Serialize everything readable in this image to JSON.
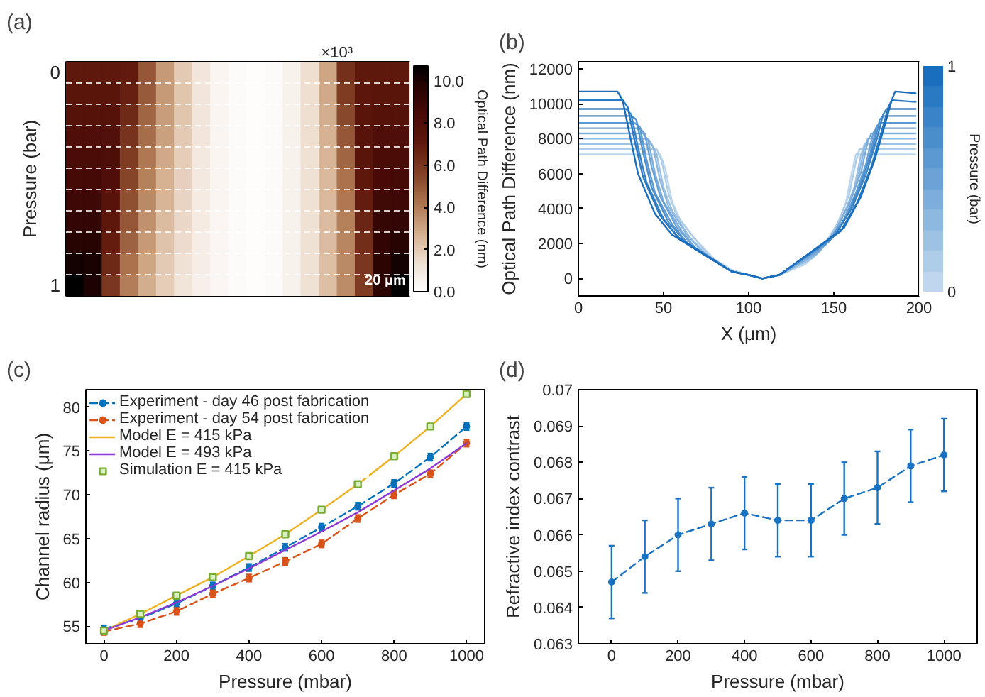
{
  "chart_data": [
    {
      "type": "heatmap",
      "title": "(a)",
      "ylabel": "Pressure (bar)",
      "clabel": "Optical Path Difference (nm)",
      "grid": "y",
      "annotations": [
        "×10³",
        "20 μm"
      ],
      "categories": [
        null,
        null,
        null,
        null,
        null,
        null,
        null,
        null,
        null,
        null,
        null,
        null,
        null,
        null,
        null,
        null,
        null,
        null,
        null
      ],
      "y_categories": [
        "0",
        null,
        null,
        null,
        null,
        null,
        null,
        null,
        null,
        null,
        "1"
      ],
      "clim": [
        0,
        10.7
      ],
      "cticks": [
        {
          "value": 0,
          "label": "0.0"
        },
        {
          "value": 2,
          "label": "2.0"
        },
        {
          "value": 4,
          "label": "4.0"
        },
        {
          "value": 6,
          "label": "6.0"
        },
        {
          "value": 8,
          "label": "8.0"
        },
        {
          "value": 10,
          "label": "10.0"
        }
      ],
      "cells": [
        [
          7.1,
          7.1,
          7.1,
          7.0,
          5.0,
          3.3,
          2.0,
          1.1,
          0.5,
          0.2,
          0.1,
          0.2,
          0.6,
          1.4,
          3.0,
          6.2,
          7.1,
          7.1,
          7.1
        ],
        [
          7.4,
          7.4,
          7.4,
          6.8,
          4.9,
          3.3,
          2.1,
          1.1,
          0.5,
          0.2,
          0.1,
          0.2,
          0.6,
          1.4,
          2.9,
          5.8,
          7.3,
          7.4,
          7.4
        ],
        [
          7.7,
          7.7,
          7.7,
          6.4,
          4.6,
          3.2,
          2.1,
          1.1,
          0.5,
          0.2,
          0.1,
          0.2,
          0.6,
          1.4,
          2.8,
          5.4,
          7.4,
          7.7,
          7.7
        ],
        [
          8.0,
          8.0,
          7.9,
          6.1,
          4.4,
          3.1,
          2.0,
          1.1,
          0.5,
          0.2,
          0.1,
          0.2,
          0.6,
          1.4,
          2.7,
          5.0,
          7.5,
          8.0,
          8.0
        ],
        [
          8.3,
          8.3,
          8.1,
          5.8,
          4.1,
          2.9,
          1.9,
          1.0,
          0.5,
          0.2,
          0.1,
          0.2,
          0.6,
          1.3,
          2.6,
          4.6,
          7.4,
          8.3,
          8.3
        ],
        [
          8.6,
          8.6,
          8.0,
          5.5,
          3.9,
          2.7,
          1.8,
          1.0,
          0.5,
          0.2,
          0.1,
          0.2,
          0.6,
          1.3,
          2.5,
          4.3,
          7.2,
          8.5,
          8.6
        ],
        [
          8.9,
          8.9,
          7.6,
          5.2,
          3.7,
          2.6,
          1.7,
          0.9,
          0.5,
          0.2,
          0.1,
          0.2,
          0.6,
          1.3,
          2.5,
          4.1,
          6.9,
          8.8,
          8.9
        ],
        [
          9.3,
          9.3,
          7.2,
          5.0,
          3.5,
          2.4,
          1.6,
          0.9,
          0.4,
          0.2,
          0.1,
          0.2,
          0.6,
          1.3,
          2.4,
          3.9,
          6.6,
          9.2,
          9.3
        ],
        [
          9.7,
          9.7,
          6.9,
          4.7,
          3.3,
          2.2,
          1.5,
          0.8,
          0.4,
          0.2,
          0.1,
          0.2,
          0.6,
          1.3,
          2.4,
          3.8,
          6.3,
          9.4,
          9.7
        ],
        [
          10.2,
          10.1,
          6.5,
          4.3,
          3.0,
          2.0,
          1.3,
          0.8,
          0.4,
          0.2,
          0.1,
          0.2,
          0.6,
          1.3,
          2.3,
          3.7,
          6.0,
          9.5,
          10.2
        ],
        [
          10.7,
          10.0,
          6.0,
          4.0,
          2.8,
          1.9,
          1.2,
          0.7,
          0.4,
          0.2,
          0.1,
          0.2,
          0.6,
          1.3,
          2.3,
          3.6,
          5.8,
          9.5,
          10.7
        ]
      ]
    },
    {
      "type": "line",
      "title": "(b)",
      "xlabel": "X (μm)",
      "ylabel": "Optical Path Difference (nm)",
      "xlim": [
        0,
        200
      ],
      "ylim": [
        -1000,
        12400
      ],
      "xticks": [
        0,
        50,
        100,
        150,
        200
      ],
      "yticks": [
        0,
        2000,
        4000,
        6000,
        8000,
        10000,
        12000
      ],
      "clabel": "Pressure (bar)",
      "clim": [
        0,
        1
      ],
      "cticks": [
        0,
        1
      ],
      "series": [
        {
          "color": "#bed7ee",
          "x": [
            0,
            48,
            51,
            55,
            60,
            70,
            80,
            90,
            100,
            108,
            118,
            133,
            143,
            151,
            157,
            161,
            163,
            198
          ],
          "values": [
            7100,
            7100,
            6300,
            4400,
            3300,
            2100,
            1100,
            500,
            200,
            0,
            200,
            800,
            1700,
            2900,
            4300,
            6300,
            7100,
            7100
          ]
        },
        {
          "color": "#aecde9",
          "x": [
            0,
            46,
            49,
            53,
            58,
            68,
            78,
            90,
            100,
            108,
            118,
            135,
            145,
            153,
            159,
            163,
            165,
            198
          ],
          "values": [
            7400,
            7400,
            6700,
            4800,
            3600,
            2300,
            1200,
            400,
            200,
            0,
            200,
            1000,
            2000,
            3300,
            4800,
            6700,
            7400,
            7400
          ]
        },
        {
          "color": "#9dc2e4",
          "x": [
            0,
            43,
            46,
            50,
            55,
            65,
            75,
            90,
            100,
            108,
            118,
            138,
            148,
            156,
            162,
            166,
            168,
            198
          ],
          "values": [
            7700,
            7700,
            7100,
            5200,
            3900,
            2400,
            1400,
            400,
            200,
            0,
            200,
            1200,
            2300,
            3700,
            5200,
            7100,
            7700,
            7700
          ]
        },
        {
          "color": "#8db8e0",
          "x": [
            0,
            41,
            44,
            48,
            53,
            63,
            73,
            90,
            100,
            108,
            118,
            140,
            150,
            158,
            164,
            168,
            170,
            198
          ],
          "values": [
            8000,
            8000,
            7500,
            5600,
            4100,
            2600,
            1500,
            400,
            200,
            0,
            200,
            1400,
            2600,
            4100,
            5700,
            7500,
            8000,
            8000
          ]
        },
        {
          "color": "#7caddb",
          "x": [
            0,
            38,
            41,
            45,
            50,
            60,
            70,
            90,
            100,
            108,
            118,
            142,
            152,
            160,
            166,
            170,
            172,
            198
          ],
          "values": [
            8300,
            8300,
            7900,
            6000,
            4400,
            2800,
            1600,
            400,
            200,
            0,
            200,
            1600,
            2900,
            4500,
            6100,
            7900,
            8300,
            8300
          ]
        },
        {
          "color": "#6ca3d6",
          "x": [
            0,
            36,
            39,
            43,
            48,
            58,
            68,
            90,
            100,
            108,
            118,
            145,
            155,
            163,
            169,
            173,
            175,
            198
          ],
          "values": [
            8600,
            8600,
            8300,
            6400,
            4700,
            2900,
            1800,
            400,
            200,
            0,
            200,
            1900,
            3200,
            4900,
            6600,
            8300,
            8600,
            8600
          ]
        },
        {
          "color": "#5c98d1",
          "x": [
            0,
            33,
            36,
            40,
            45,
            55,
            65,
            90,
            100,
            108,
            118,
            147,
            157,
            165,
            171,
            175,
            177,
            198
          ],
          "values": [
            8900,
            8900,
            8700,
            6800,
            4900,
            3100,
            1900,
            400,
            200,
            0,
            200,
            2100,
            3500,
            5300,
            7000,
            8700,
            8900,
            8900
          ]
        },
        {
          "color": "#4b8ecc",
          "x": [
            0,
            31,
            34,
            38,
            43,
            53,
            63,
            90,
            100,
            108,
            118,
            149,
            159,
            167,
            173,
            177,
            179,
            198
          ],
          "values": [
            9300,
            9300,
            9100,
            7200,
            5200,
            3200,
            2100,
            400,
            200,
            0,
            200,
            2300,
            3800,
            5700,
            7500,
            9100,
            9300,
            9300
          ]
        },
        {
          "color": "#3b83c8",
          "x": [
            0,
            28,
            31,
            35,
            40,
            50,
            60,
            90,
            100,
            108,
            118,
            151,
            161,
            169,
            175,
            179,
            181,
            198
          ],
          "values": [
            9700,
            9700,
            9400,
            7500,
            5500,
            3400,
            2200,
            400,
            200,
            0,
            200,
            2500,
            4100,
            6000,
            7900,
            9400,
            9700,
            9700
          ]
        },
        {
          "color": "#2a79c3",
          "x": [
            0,
            26,
            29,
            33,
            38,
            48,
            58,
            90,
            100,
            108,
            118,
            154,
            164,
            172,
            178,
            182,
            184,
            198
          ],
          "values": [
            10200,
            10200,
            9800,
            7900,
            5800,
            3600,
            2400,
            400,
            200,
            0,
            200,
            2700,
            4400,
            6400,
            8400,
            9800,
            10200,
            10100
          ]
        },
        {
          "color": "#1a6ebe",
          "x": [
            0,
            23,
            26,
            30,
            35,
            45,
            55,
            90,
            100,
            108,
            118,
            156,
            166,
            174,
            180,
            184,
            186,
            198
          ],
          "values": [
            10700,
            10700,
            10200,
            8300,
            6000,
            3700,
            2500,
            400,
            200,
            0,
            200,
            2900,
            4700,
            6800,
            8800,
            10200,
            10700,
            10600
          ]
        }
      ]
    },
    {
      "type": "line",
      "title": "(c)",
      "xlabel": "Pressure (mbar)",
      "ylabel": "Channel radius (μm)",
      "x": [
        0,
        100,
        200,
        300,
        400,
        500,
        600,
        700,
        800,
        900,
        1000
      ],
      "xlim": [
        -50,
        1050
      ],
      "ylim": [
        53,
        82
      ],
      "xticks": [
        0,
        200,
        400,
        600,
        800,
        1000
      ],
      "yticks": [
        55,
        60,
        65,
        70,
        75,
        80
      ],
      "legend": "top left",
      "series": [
        {
          "name": "Experiment - day 46 post fabrication",
          "color": "#0072bd",
          "line_style": "dashed",
          "marker": "circle",
          "values": [
            54.7,
            55.9,
            57.6,
            59.6,
            61.7,
            64.0,
            66.3,
            68.7,
            71.3,
            74.3,
            77.8
          ],
          "errors": [
            0.4,
            0.4,
            0.4,
            0.4,
            0.4,
            0.4,
            0.4,
            0.4,
            0.4,
            0.4,
            0.4
          ]
        },
        {
          "name": "Experiment - day 54 post fabrication",
          "color": "#d95319",
          "line_style": "dashed",
          "marker": "circle",
          "values": [
            54.4,
            55.3,
            56.7,
            58.7,
            60.5,
            62.4,
            64.4,
            67.3,
            70.0,
            72.4,
            75.9
          ],
          "errors": [
            0.4,
            0.4,
            0.4,
            0.4,
            0.4,
            0.4,
            0.4,
            0.4,
            0.4,
            0.4,
            0.4
          ]
        },
        {
          "name": "Model E = 415 kPa",
          "color": "#edb120",
          "line_style": "solid",
          "marker": "none",
          "values": [
            54.5,
            56.4,
            58.5,
            60.6,
            63.0,
            65.5,
            68.3,
            71.2,
            74.4,
            77.8,
            81.5
          ]
        },
        {
          "name": "Model E = 493 kPa",
          "color": "#8b3ad6",
          "line_style": "solid",
          "marker": "none",
          "values": [
            54.5,
            56.0,
            57.7,
            59.6,
            61.6,
            63.7,
            65.8,
            68.0,
            70.5,
            73.0,
            75.9
          ]
        },
        {
          "name": "Simulation E = 415 kPa",
          "type": "scatter",
          "color": "#77ac30",
          "marker": "square",
          "values": [
            54.5,
            56.4,
            58.5,
            60.6,
            63.0,
            65.5,
            68.3,
            71.2,
            74.4,
            77.8,
            81.5
          ]
        }
      ]
    },
    {
      "type": "line",
      "title": "(d)",
      "xlabel": "Pressure (mbar)",
      "ylabel": "Refractive index contrast",
      "x": [
        0,
        100,
        200,
        300,
        400,
        500,
        600,
        700,
        800,
        900,
        1000
      ],
      "xlim": [
        -100,
        1100
      ],
      "ylim": [
        0.063,
        0.07
      ],
      "xticks": [
        0,
        200,
        400,
        600,
        800,
        1000
      ],
      "yticks": [
        0.063,
        0.064,
        0.065,
        0.066,
        0.067,
        0.068,
        0.069,
        0.07
      ],
      "color": "#1a72c2",
      "line_style": "dashed",
      "marker": "circle",
      "values": [
        0.0647,
        0.0654,
        0.066,
        0.0663,
        0.0666,
        0.0664,
        0.0664,
        0.067,
        0.0673,
        0.0679,
        0.0682
      ],
      "errors": [
        0.001,
        0.001,
        0.001,
        0.001,
        0.001,
        0.001,
        0.001,
        0.001,
        0.001,
        0.001,
        0.001
      ]
    }
  ]
}
